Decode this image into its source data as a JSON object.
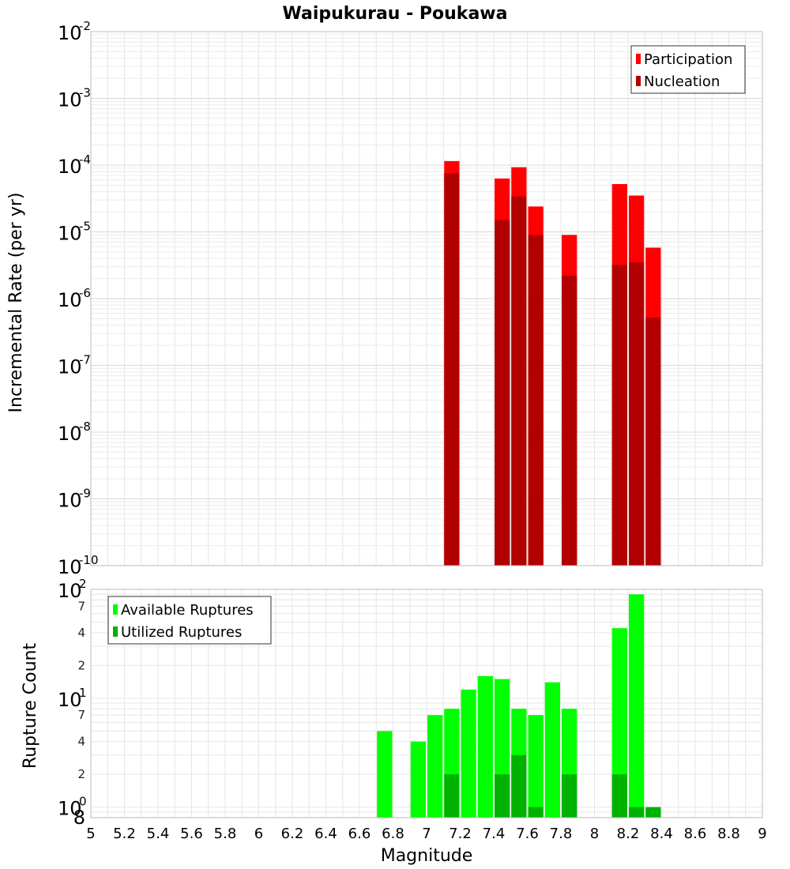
{
  "chart_data": [
    {
      "type": "bar",
      "title": "Waipukurau - Poukawa",
      "xlabel": "",
      "ylabel": "Incremental Rate (per yr)",
      "y_scale": "log",
      "xlim": [
        5,
        9
      ],
      "ylim": [
        1e-10,
        0.01
      ],
      "y_ticks": [
        {
          "base": "10",
          "exp": "-10"
        },
        {
          "base": "10",
          "exp": "-9"
        },
        {
          "base": "10",
          "exp": "-8"
        },
        {
          "base": "10",
          "exp": "-7"
        },
        {
          "base": "10",
          "exp": "-6"
        },
        {
          "base": "10",
          "exp": "-5"
        },
        {
          "base": "10",
          "exp": "-4"
        },
        {
          "base": "10",
          "exp": "-3"
        },
        {
          "base": "10",
          "exp": "-2"
        }
      ],
      "grid": true,
      "legend_position": "top-right",
      "colors": {
        "Participation": "#ff0000",
        "Nucleation": "#b20000"
      },
      "series": [
        {
          "name": "Participation",
          "x": [
            7.15,
            7.45,
            7.55,
            7.65,
            7.85,
            8.15,
            8.25,
            8.35
          ],
          "values": [
            0.000115,
            6.3e-05,
            9.3e-05,
            2.4e-05,
            9e-06,
            5.2e-05,
            3.5e-05,
            5.8e-06
          ]
        },
        {
          "name": "Nucleation",
          "x": [
            7.15,
            7.45,
            7.55,
            7.65,
            7.85,
            8.15,
            8.25,
            8.35
          ],
          "values": [
            7.5e-05,
            1.5e-05,
            3.4e-05,
            9e-06,
            2.2e-06,
            3.2e-06,
            3.5e-06,
            5.2e-07
          ]
        }
      ]
    },
    {
      "type": "bar",
      "title": "",
      "xlabel": "Magnitude",
      "ylabel": "Rupture Count",
      "y_scale": "log",
      "xlim": [
        5,
        9
      ],
      "ylim": [
        0.8,
        100
      ],
      "x_ticks": [
        "5",
        "5.2",
        "5.4",
        "5.6",
        "5.8",
        "6",
        "6.2",
        "6.4",
        "6.6",
        "6.8",
        "7",
        "7.2",
        "7.4",
        "7.6",
        "7.8",
        "8",
        "8.2",
        "8.4",
        "8.6",
        "8.8",
        "9"
      ],
      "y_major_ticks": [
        {
          "base": "10",
          "exp": "0"
        },
        {
          "base": "10",
          "exp": "1"
        },
        {
          "base": "10",
          "exp": "2"
        }
      ],
      "y_minor_ticks": [
        "8",
        "2",
        "4",
        "7",
        "2",
        "4",
        "7"
      ],
      "grid": true,
      "legend_position": "top-left",
      "colors": {
        "Available Ruptures": "#00ff00",
        "Utilized Ruptures": "#00b200"
      },
      "series": [
        {
          "name": "Available Ruptures",
          "x": [
            6.75,
            6.95,
            7.05,
            7.15,
            7.25,
            7.35,
            7.45,
            7.55,
            7.65,
            7.75,
            7.85,
            8.15,
            8.25
          ],
          "values": [
            5,
            4,
            7,
            8,
            12,
            16,
            15,
            8,
            7,
            14,
            8,
            44,
            90
          ]
        },
        {
          "name": "Utilized Ruptures",
          "x": [
            7.15,
            7.45,
            7.55,
            7.65,
            7.85,
            8.15,
            8.25,
            8.35
          ],
          "values": [
            2,
            2,
            3,
            1,
            2,
            2,
            1,
            1
          ]
        }
      ]
    }
  ]
}
